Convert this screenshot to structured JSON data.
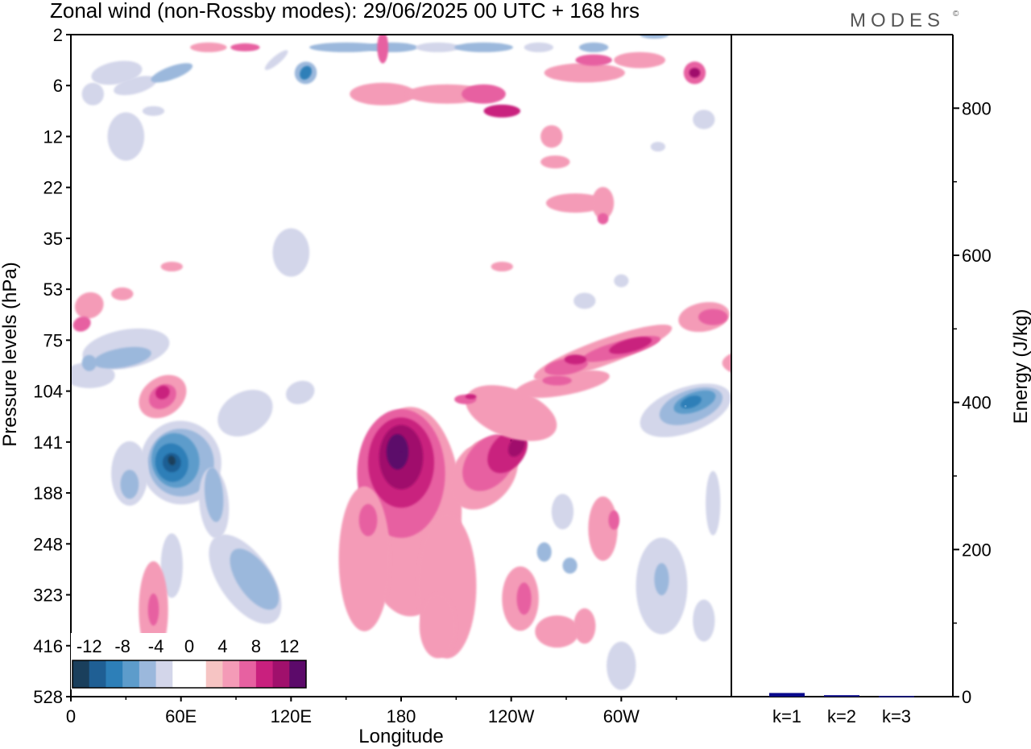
{
  "title": "Zonal wind (non-Rossby modes):  29/06/2025  00 UTC  + 168 hrs",
  "brand": "MODES",
  "brand_mark": "©",
  "chart_data": [
    {
      "type": "heatmap",
      "variable": "Zonal wind (non-Rossby modes)",
      "xlabel": "Longitude",
      "ylabel": "Pressure levels (hPa)",
      "x_ticks": [
        "0",
        "60E",
        "120E",
        "180",
        "120W",
        "60W"
      ],
      "x_tick_degrees": [
        0,
        60,
        120,
        180,
        240,
        300
      ],
      "xlim": [
        0,
        360
      ],
      "y_ticks": [
        "2",
        "6",
        "12",
        "22",
        "35",
        "53",
        "75",
        "104",
        "141",
        "188",
        "248",
        "323",
        "416",
        "528"
      ],
      "y_scale": "pressure levels (top 2 hPa, bottom 528 hPa)",
      "colorbar": {
        "labels": [
          "-12",
          "-8",
          "-4",
          "0",
          "4",
          "8",
          "12"
        ],
        "colors": [
          "#1a3f5c",
          "#1f5f94",
          "#2d7fb8",
          "#5d9ccb",
          "#9bb8dc",
          "#d3d6ea",
          "#ffffff",
          "#ffffff",
          "#f6c4c3",
          "#f49bb7",
          "#e761a1",
          "#c9207e",
          "#a0106c",
          "#5c0a6a"
        ]
      },
      "features": [
        {
          "label": "negative core near 60E",
          "lon": 55,
          "level_hpa": 160,
          "value": -14
        },
        {
          "label": "positive core near 180",
          "lon": 180,
          "level_hpa": 150,
          "value": 12
        },
        {
          "label": "positive band 120W",
          "lon": 240,
          "level_hpa": 140,
          "value": 10
        },
        {
          "label": "negative east Pacific",
          "lon": 335,
          "level_hpa": 115,
          "value": -8
        },
        {
          "label": "positive lower troposphere 180",
          "lon": 185,
          "level_hpa": 330,
          "value": 4
        }
      ]
    },
    {
      "type": "bar",
      "ylabel": "Energy (J/kg)",
      "categories": [
        "k=1",
        "k=2",
        "k=3"
      ],
      "values": [
        5,
        2,
        1
      ],
      "ylim": [
        0,
        900
      ],
      "y_ticks": [
        0,
        200,
        400,
        600,
        800
      ],
      "bar_color": "#0a0a8c"
    }
  ]
}
